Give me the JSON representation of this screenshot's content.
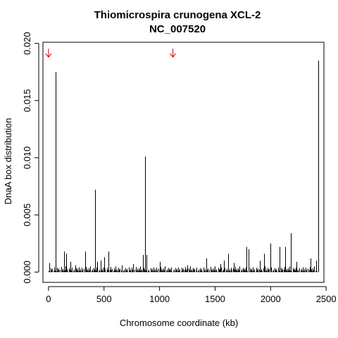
{
  "chart_data": {
    "type": "bar",
    "title": "Thiomicrospira crunogena XCL-2",
    "subtitle": "NC_007520",
    "xlabel": "Chromosome coordinate (kb)",
    "ylabel": "DnaA box distribution",
    "xlim": [
      -50,
      2480
    ],
    "ylim": [
      -0.0009,
      0.0201
    ],
    "x_ticks": [
      0,
      500,
      1000,
      1500,
      2000,
      2500
    ],
    "x_tick_labels": [
      "0",
      "500",
      "1000",
      "1500",
      "2000",
      "2500"
    ],
    "y_ticks": [
      0.0,
      0.005,
      0.01,
      0.015,
      0.02
    ],
    "y_tick_labels": [
      "0.000",
      "0.005",
      "0.010",
      "0.015",
      "0.020"
    ],
    "grid": false,
    "bar_color": "#000000",
    "arrow_color": "#cc0000",
    "arrows_x": [
      0,
      1120
    ],
    "arrow_y": 0.0188,
    "major_peaks": [
      {
        "x": 62,
        "y": 0.0175
      },
      {
        "x": 418,
        "y": 0.0072
      },
      {
        "x": 870,
        "y": 0.0101
      },
      {
        "x": 2430,
        "y": 0.0185
      },
      {
        "x": 2185,
        "y": 0.0034
      },
      {
        "x": 2000,
        "y": 0.0025
      },
      {
        "x": 2080,
        "y": 0.0022
      },
      {
        "x": 2130,
        "y": 0.0022
      },
      {
        "x": 1780,
        "y": 0.0022
      },
      {
        "x": 1800,
        "y": 0.002
      },
      {
        "x": 1620,
        "y": 0.0016
      },
      {
        "x": 1580,
        "y": 0.001
      },
      {
        "x": 540,
        "y": 0.0018
      },
      {
        "x": 140,
        "y": 0.0018
      },
      {
        "x": 160,
        "y": 0.0016
      },
      {
        "x": 330,
        "y": 0.0018
      },
      {
        "x": 850,
        "y": 0.0015
      },
      {
        "x": 880,
        "y": 0.0015
      },
      {
        "x": 500,
        "y": 0.0013
      },
      {
        "x": 470,
        "y": 0.001
      },
      {
        "x": 440,
        "y": 0.0009
      },
      {
        "x": 1420,
        "y": 0.0012
      },
      {
        "x": 1940,
        "y": 0.0016
      },
      {
        "x": 2360,
        "y": 0.0012
      },
      {
        "x": 2410,
        "y": 0.001
      },
      {
        "x": 2230,
        "y": 0.0009
      },
      {
        "x": 1000,
        "y": 0.0009
      },
      {
        "x": 1900,
        "y": 0.001
      },
      {
        "x": 1670,
        "y": 0.0008
      },
      {
        "x": 10,
        "y": 0.0008
      },
      {
        "x": 200,
        "y": 0.0009
      },
      {
        "x": 240,
        "y": 0.0006
      },
      {
        "x": 660,
        "y": 0.0006
      },
      {
        "x": 760,
        "y": 0.0007
      },
      {
        "x": 1250,
        "y": 0.0006
      },
      {
        "x": 1550,
        "y": 0.0007
      }
    ],
    "background_bars": {
      "x_start": 0,
      "x_end": 2420,
      "step": 7,
      "y_values": [
        0.0001,
        0.00022,
        5e-05,
        0.00035,
        0.00015,
        0.00028,
        8e-05,
        0.00042,
        0.00012,
        0.00025,
        6e-05,
        0.00038,
        0.00018,
        0.0003,
        4e-05,
        0.0002,
        0.00045,
        0.00014,
        0.00026,
        9e-05,
        0.00033,
        0.00016,
        0.0005,
        0.00011,
        0.00024,
        7e-05,
        0.00036,
        0.00019,
        0.00029,
        0.00013,
        0.0004,
        3e-05
      ]
    }
  }
}
